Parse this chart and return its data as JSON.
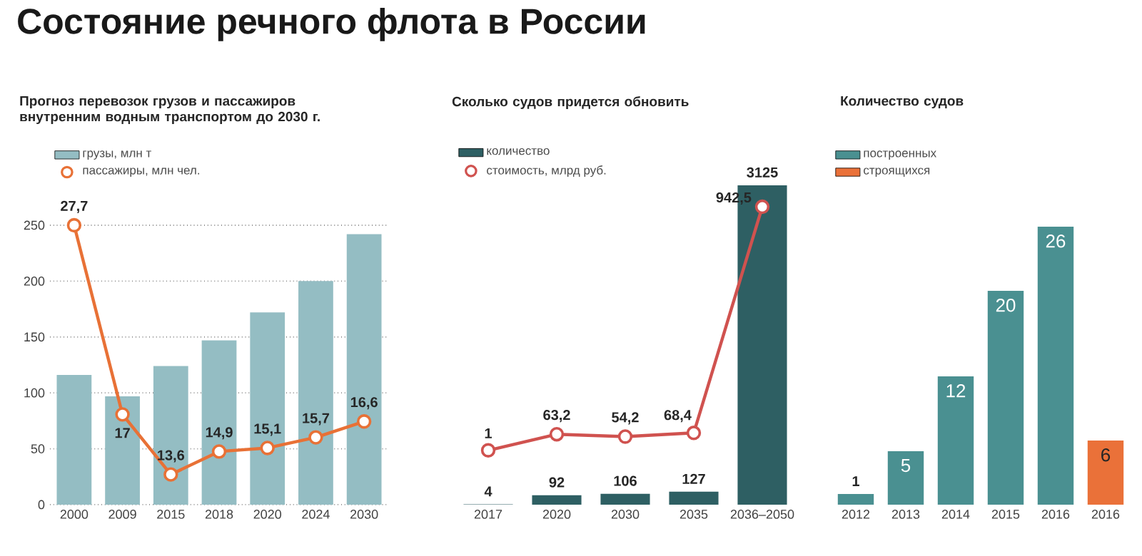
{
  "chart_data": [
    {
      "type": "bar",
      "title": "Состояние речного флота в России",
      "subtitle": "Прогноз перевозок грузов и пассажиров внутренним водным транспортом до 2030 г.",
      "categories": [
        "2000",
        "2009",
        "2015",
        "2018",
        "2020",
        "2024",
        "2030"
      ],
      "series": [
        {
          "name": "грузы, млн т",
          "color": "#94bdc3",
          "values": [
            116,
            97,
            124,
            147,
            172,
            200,
            242
          ]
        },
        {
          "name": "пассажиры, млн чел.",
          "type": "line",
          "axis": "y2",
          "color": "#e87136",
          "values": [
            27.7,
            17,
            13.6,
            14.9,
            15.1,
            15.7,
            16.6
          ],
          "value_labels": [
            "27,7",
            "17",
            "13,6",
            "14,9",
            "15,1",
            "15,7",
            "16,6"
          ]
        }
      ],
      "ylim": [
        0,
        250
      ],
      "yticks": [
        0,
        50,
        100,
        150,
        200,
        250
      ],
      "grid": "y",
      "legend": "top left",
      "marker": "circle"
    },
    {
      "type": "bar",
      "subtitle": "Сколько судов придется обновить",
      "categories": [
        "2017",
        "2020",
        "2030",
        "2035",
        "2036–2050"
      ],
      "series": [
        {
          "name": "количество",
          "color": "#2e5f63",
          "values": [
            4,
            92,
            106,
            127,
            3125
          ],
          "value_labels": [
            "4",
            "92",
            "106",
            "127",
            "3125"
          ]
        },
        {
          "name": "стоимость, млрд руб.",
          "type": "line",
          "axis": "y2",
          "color": "#d0524f",
          "values": [
            1,
            63.2,
            54.2,
            68.4,
            942.5
          ],
          "value_labels": [
            "1",
            "63,2",
            "54,2",
            "68,4",
            "942,5"
          ]
        }
      ],
      "tick_labels": "x",
      "legend": "top left",
      "marker": "circle"
    },
    {
      "type": "bar",
      "subtitle": "Количество судов",
      "categories": [
        "2012",
        "2013",
        "2014",
        "2015",
        "2016",
        "2016"
      ],
      "series": [
        {
          "name": "построенных",
          "color": "#4a9091",
          "values": [
            1,
            5,
            12,
            20,
            26,
            null
          ],
          "value_labels": [
            "1",
            "5",
            "12",
            "20",
            "26",
            null
          ]
        },
        {
          "name": "строящихся",
          "color": "#ea7139",
          "values": [
            null,
            null,
            null,
            null,
            null,
            6
          ],
          "value_labels": [
            null,
            null,
            null,
            null,
            null,
            "6"
          ]
        }
      ],
      "tick_labels": "x",
      "legend": "top left"
    }
  ]
}
